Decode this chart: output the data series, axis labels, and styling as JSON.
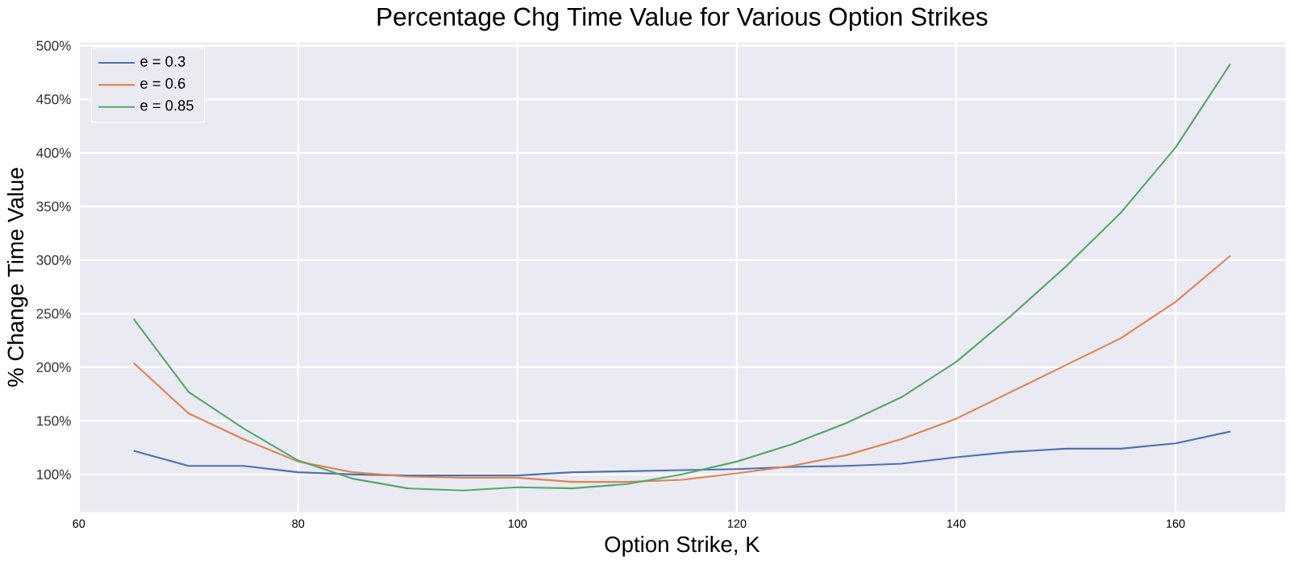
{
  "chart_data": {
    "type": "line",
    "title": "Percentage Chg Time Value for Various Option Strikes",
    "xlabel": "Option Strike, K",
    "ylabel": "% Change Time Value",
    "x": [
      65,
      70,
      75,
      80,
      85,
      90,
      95,
      100,
      105,
      110,
      115,
      120,
      125,
      130,
      135,
      140,
      145,
      150,
      155,
      160,
      165
    ],
    "series": [
      {
        "name": "e = 0.3",
        "color": "#4c72b0",
        "values": [
          122,
          108,
          108,
          102,
          100,
          99,
          99,
          99,
          102,
          103,
          104,
          105,
          107,
          108,
          110,
          116,
          121,
          124,
          124,
          129,
          140
        ]
      },
      {
        "name": "e = 0.6",
        "color": "#dd8452",
        "values": [
          204,
          157,
          133,
          112,
          102,
          98,
          97,
          97,
          93,
          93,
          95,
          101,
          108,
          118,
          133,
          152,
          177,
          202,
          227,
          261,
          304
        ]
      },
      {
        "name": "e = 0.85",
        "color": "#55a868",
        "values": [
          245,
          177,
          143,
          113,
          96,
          87,
          85,
          88,
          87,
          91,
          100,
          112,
          128,
          148,
          172,
          205,
          248,
          294,
          344,
          405,
          483
        ]
      }
    ],
    "xlim": [
      60,
      170
    ],
    "ylim": [
      65,
      503
    ],
    "xticks": [
      60,
      80,
      100,
      120,
      140,
      160
    ],
    "yticks": [
      {
        "value": 100,
        "label": "100%"
      },
      {
        "value": 150,
        "label": "150%"
      },
      {
        "value": 200,
        "label": "200%"
      },
      {
        "value": 250,
        "label": "250%"
      },
      {
        "value": 300,
        "label": "300%"
      },
      {
        "value": 350,
        "label": "350%"
      },
      {
        "value": 400,
        "label": "400%"
      },
      {
        "value": 450,
        "label": "450%"
      },
      {
        "value": 500,
        "label": "500%"
      }
    ],
    "grid": true,
    "legend": "top left"
  }
}
